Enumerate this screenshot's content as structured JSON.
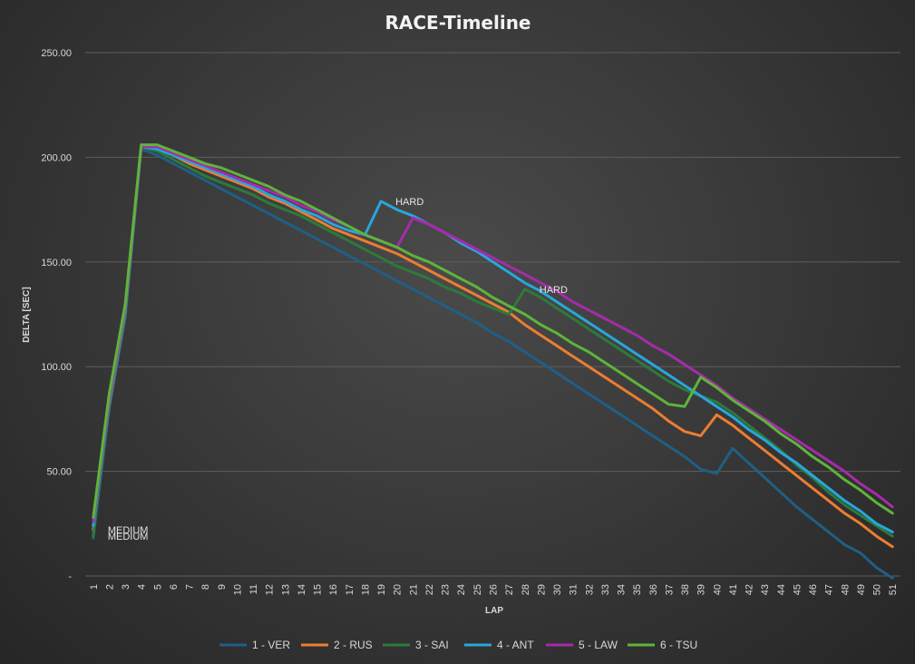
{
  "chart_data": {
    "type": "line",
    "title": "RACE-Timeline",
    "xlabel": "LAP",
    "ylabel": "DELTA [SEC]",
    "ylim": [
      0,
      250
    ],
    "yticks": [
      0,
      50,
      100,
      150,
      200,
      250
    ],
    "ytick_labels": [
      "-",
      "50.00",
      "100.00",
      "150.00",
      "200.00",
      "250.00"
    ],
    "x": [
      1,
      2,
      3,
      4,
      5,
      6,
      7,
      8,
      9,
      10,
      11,
      12,
      13,
      14,
      15,
      16,
      17,
      18,
      19,
      20,
      21,
      22,
      23,
      24,
      25,
      26,
      27,
      28,
      29,
      30,
      31,
      32,
      33,
      34,
      35,
      36,
      37,
      38,
      39,
      40,
      41,
      42,
      43,
      44,
      45,
      46,
      47,
      48,
      49,
      50,
      51
    ],
    "grid": true,
    "legend_position": "bottom",
    "series": [
      {
        "name": "1 - VER",
        "color": "#1f5f86",
        "values": [
          18,
          80,
          123,
          204,
          201,
          197,
          193,
          189,
          185,
          181,
          177,
          173,
          169,
          165,
          161,
          157,
          153,
          149,
          145,
          141,
          137,
          133,
          129,
          125,
          121,
          116,
          112,
          107,
          102,
          97,
          92,
          87,
          82,
          77,
          72,
          67,
          62,
          57,
          51,
          49,
          61,
          54,
          47,
          40,
          33,
          27,
          21,
          15,
          11,
          4,
          -1
        ]
      },
      {
        "name": "2 - RUS",
        "color": "#ed7d31",
        "values": [
          22,
          82,
          126,
          205,
          204,
          201,
          197,
          194,
          191,
          188,
          185,
          181,
          178,
          174,
          170,
          166,
          163,
          160,
          157,
          154,
          150,
          146,
          142,
          138,
          134,
          130,
          126,
          120,
          115,
          110,
          105,
          100,
          95,
          90,
          85,
          80,
          74,
          69,
          67,
          77,
          72,
          66,
          60,
          54,
          48,
          42,
          36,
          30,
          25,
          19,
          14
        ]
      },
      {
        "name": "3 - SAI",
        "color": "#2d7a3a",
        "values": [
          19,
          83,
          127,
          205,
          203,
          199,
          195,
          191,
          188,
          185,
          182,
          178,
          175,
          172,
          168,
          164,
          160,
          156,
          152,
          148,
          145,
          142,
          138,
          135,
          131,
          128,
          125,
          137,
          133,
          128,
          123,
          118,
          113,
          108,
          103,
          98,
          93,
          89,
          86,
          83,
          78,
          72,
          66,
          60,
          53,
          47,
          40,
          34,
          29,
          24,
          19
        ]
      },
      {
        "name": "4 - ANT",
        "color": "#28a6dc",
        "values": [
          24,
          84,
          128,
          205,
          204,
          201,
          198,
          195,
          192,
          189,
          186,
          182,
          179,
          175,
          172,
          168,
          165,
          163,
          179,
          175,
          172,
          168,
          164,
          159,
          155,
          150,
          145,
          140,
          136,
          131,
          126,
          121,
          116,
          111,
          106,
          101,
          96,
          91,
          86,
          81,
          76,
          70,
          65,
          59,
          54,
          48,
          42,
          36,
          31,
          25,
          21
        ]
      },
      {
        "name": "5 - LAW",
        "color": "#a62bab",
        "values": [
          26,
          85,
          129,
          205,
          205,
          202,
          199,
          196,
          193,
          190,
          187,
          184,
          181,
          177,
          174,
          170,
          167,
          163,
          160,
          157,
          171,
          168,
          164,
          160,
          156,
          152,
          148,
          144,
          140,
          136,
          131,
          127,
          123,
          119,
          115,
          110,
          106,
          101,
          96,
          91,
          85,
          80,
          75,
          70,
          65,
          60,
          55,
          50,
          44,
          39,
          33
        ]
      },
      {
        "name": "6 - TSU",
        "color": "#5db539",
        "values": [
          28,
          87,
          130,
          206,
          206,
          203,
          200,
          197,
          195,
          192,
          189,
          186,
          182,
          179,
          175,
          171,
          167,
          163,
          160,
          157,
          153,
          150,
          146,
          142,
          138,
          133,
          129,
          125,
          120,
          116,
          111,
          107,
          102,
          97,
          92,
          87,
          82,
          81,
          95,
          90,
          84,
          79,
          74,
          68,
          63,
          57,
          52,
          46,
          41,
          35,
          30
        ]
      }
    ],
    "annotations": [
      {
        "text": "MEDIUM",
        "x": 1,
        "y": 22
      },
      {
        "text": "MEDIUM",
        "x": 1,
        "y": 19
      },
      {
        "text": "HARD",
        "x": 19,
        "y": 179
      },
      {
        "text": "HARD",
        "x": 28,
        "y": 137
      }
    ]
  }
}
